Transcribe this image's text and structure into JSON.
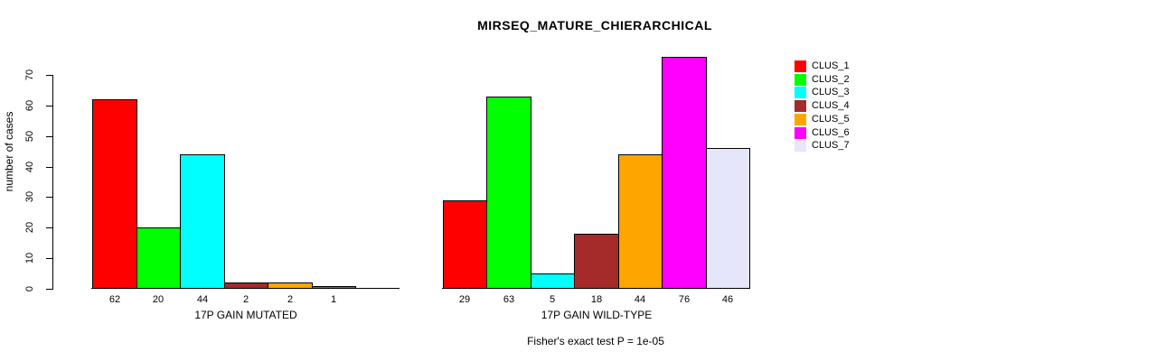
{
  "title": "MIRSEQ_MATURE_CHIERARCHICAL",
  "footer": "Fisher's exact test P = 1e-05",
  "legend": {
    "items": [
      {
        "label": "CLUS_1",
        "color": "#FF0000"
      },
      {
        "label": "CLUS_2",
        "color": "#00FF00"
      },
      {
        "label": "CLUS_3",
        "color": "#00FFFF"
      },
      {
        "label": "CLUS_4",
        "color": "#A52A2A"
      },
      {
        "label": "CLUS_5",
        "color": "#FFA500"
      },
      {
        "label": "CLUS_6",
        "color": "#FF00FF"
      },
      {
        "label": "CLUS_7",
        "color": "#E6E6FA"
      }
    ]
  },
  "chart_data": {
    "type": "bar",
    "title": "MIRSEQ_MATURE_CHIERARCHICAL",
    "ylabel": "number of cases",
    "ylim": [
      0,
      70
    ],
    "yticks": [
      0,
      10,
      20,
      30,
      40,
      50,
      60,
      70
    ],
    "grid": false,
    "legend_position": "right",
    "series_names": [
      "CLUS_1",
      "CLUS_2",
      "CLUS_3",
      "CLUS_4",
      "CLUS_5",
      "CLUS_6",
      "CLUS_7"
    ],
    "groups": [
      {
        "label": "17P GAIN MUTATED",
        "categories": [
          "CLUS_1",
          "CLUS_2",
          "CLUS_3",
          "CLUS_4",
          "CLUS_5",
          "CLUS_6"
        ],
        "values": [
          62,
          20,
          44,
          2,
          2,
          1
        ],
        "bar_labels": [
          "62",
          "20",
          "44",
          "2",
          "2",
          "1"
        ],
        "slot_count": 7
      },
      {
        "label": "17P GAIN WILD-TYPE",
        "categories": [
          "CLUS_1",
          "CLUS_2",
          "CLUS_3",
          "CLUS_4",
          "CLUS_5",
          "CLUS_6",
          "CLUS_7"
        ],
        "values": [
          29,
          63,
          5,
          18,
          44,
          76,
          46
        ],
        "bar_labels": [
          "29",
          "63",
          "5",
          "18",
          "44",
          "76",
          "46"
        ],
        "slot_count": 7
      }
    ],
    "annotation": "Fisher's exact test P = 1e-05"
  }
}
